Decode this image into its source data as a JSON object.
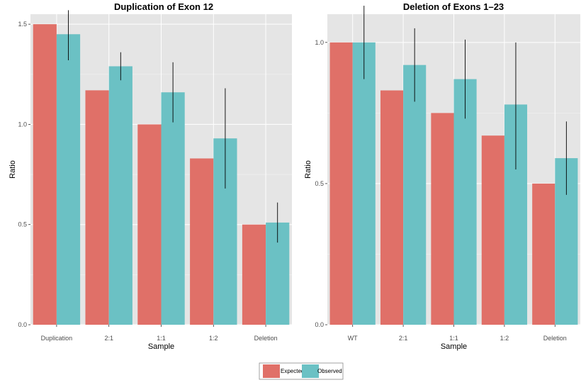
{
  "colors": {
    "expected": "#E07068",
    "observed": "#6BC1C4",
    "panel_bg": "#E5E5E5",
    "grid_major": "#FFFFFF",
    "grid_minor": "#F2F2F2",
    "error_bar": "#000000"
  },
  "legend": {
    "items": [
      {
        "label": "Expected",
        "color_key": "expected"
      },
      {
        "label": "Observed",
        "color_key": "observed"
      }
    ]
  },
  "chart_data": [
    {
      "type": "bar",
      "title": "Duplication of Exon 12",
      "xlabel": "Sample",
      "ylabel": "Ratio",
      "ylim": [
        0,
        1.55
      ],
      "yticks": [
        0.0,
        0.5,
        1.0,
        1.5
      ],
      "ytick_labels": [
        "0.0",
        "0.5",
        "1.0",
        "1.5"
      ],
      "grid": true,
      "categories": [
        "Duplication",
        "2:1",
        "1:1",
        "1:2",
        "Deletion"
      ],
      "series": [
        {
          "name": "Expected",
          "values": [
            1.5,
            1.17,
            1.0,
            0.83,
            0.5
          ]
        },
        {
          "name": "Observed",
          "values": [
            1.45,
            1.29,
            1.16,
            0.93,
            0.51
          ],
          "error_low": [
            1.32,
            1.22,
            1.01,
            0.68,
            0.41
          ],
          "error_high": [
            1.57,
            1.36,
            1.31,
            1.18,
            0.61
          ]
        }
      ]
    },
    {
      "type": "bar",
      "title": "Deletion of Exons 1–23",
      "xlabel": "Sample",
      "ylabel": "Ratio",
      "ylim": [
        0,
        1.1
      ],
      "yticks": [
        0.0,
        0.5,
        1.0
      ],
      "ytick_labels": [
        "0.0",
        "0.5",
        "1.0"
      ],
      "grid": true,
      "categories": [
        "WT",
        "2:1",
        "1:1",
        "1:2",
        "Deletion"
      ],
      "series": [
        {
          "name": "Expected",
          "values": [
            1.0,
            0.83,
            0.75,
            0.67,
            0.5
          ]
        },
        {
          "name": "Observed",
          "values": [
            1.0,
            0.92,
            0.87,
            0.78,
            0.59
          ],
          "error_low": [
            0.87,
            0.79,
            0.73,
            0.55,
            0.46
          ],
          "error_high": [
            1.13,
            1.05,
            1.01,
            1.0,
            0.72
          ]
        }
      ]
    }
  ]
}
